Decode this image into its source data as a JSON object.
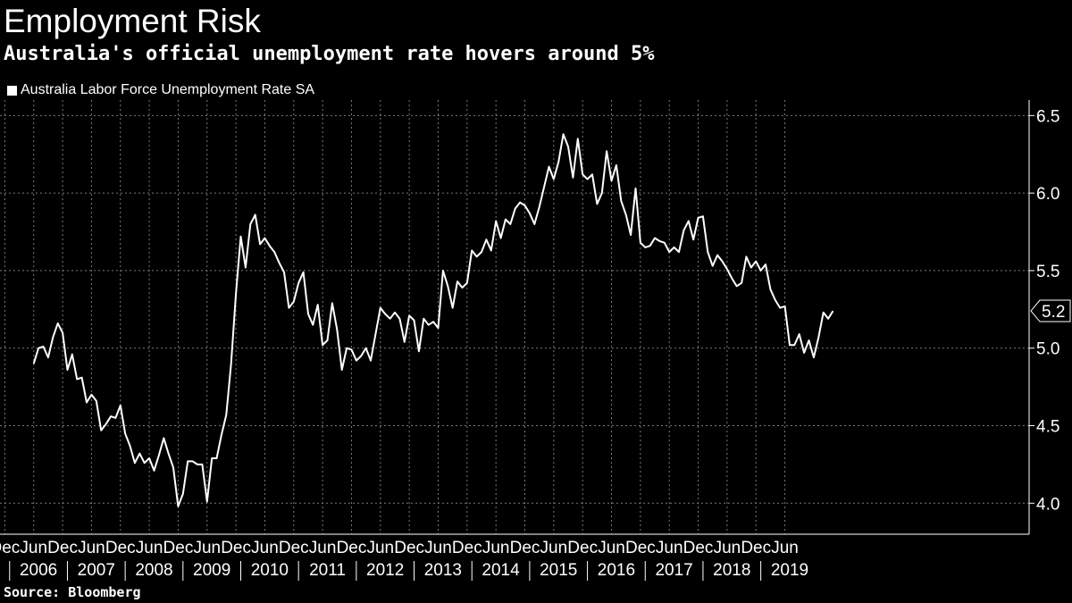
{
  "title": "Employment Risk",
  "subtitle": "Australia's official unemployment rate hovers around 5%",
  "source": "Source: Bloomberg",
  "colors": {
    "background": "#000000",
    "line": "#ffffff",
    "grid": "#7a7a7a",
    "text": "#ffffff"
  },
  "chart_data": {
    "type": "line",
    "title": "Employment Risk",
    "subtitle": "Australia's official unemployment rate hovers around 5%",
    "xlabel": "",
    "ylabel": "",
    "ylim": [
      3.8,
      6.6
    ],
    "yticks": [
      4.0,
      4.5,
      5.0,
      5.5,
      6.0,
      6.5
    ],
    "ytick_labels": [
      "4.0",
      "4.5",
      "5.0",
      "5.5",
      "6.0",
      "6.5"
    ],
    "x_range": [
      "2006-06",
      "2019-06"
    ],
    "month_ticks": [
      {
        "label": "Dec",
        "date": "2005-12"
      },
      {
        "label": "Jun",
        "date": "2006-06"
      },
      {
        "label": "Dec",
        "date": "2006-12"
      },
      {
        "label": "Jun",
        "date": "2007-06"
      },
      {
        "label": "Dec",
        "date": "2007-12"
      },
      {
        "label": "Jun",
        "date": "2008-06"
      },
      {
        "label": "Dec",
        "date": "2008-12"
      },
      {
        "label": "Jun",
        "date": "2009-06"
      },
      {
        "label": "Dec",
        "date": "2009-12"
      },
      {
        "label": "Jun",
        "date": "2010-06"
      },
      {
        "label": "Dec",
        "date": "2010-12"
      },
      {
        "label": "Jun",
        "date": "2011-06"
      },
      {
        "label": "Dec",
        "date": "2011-12"
      },
      {
        "label": "Jun",
        "date": "2012-06"
      },
      {
        "label": "Dec",
        "date": "2012-12"
      },
      {
        "label": "Jun",
        "date": "2013-06"
      },
      {
        "label": "Dec",
        "date": "2013-12"
      },
      {
        "label": "Jun",
        "date": "2014-06"
      },
      {
        "label": "Dec",
        "date": "2014-12"
      },
      {
        "label": "Jun",
        "date": "2015-06"
      },
      {
        "label": "Dec",
        "date": "2015-12"
      },
      {
        "label": "Jun",
        "date": "2016-06"
      },
      {
        "label": "Dec",
        "date": "2016-12"
      },
      {
        "label": "Jun",
        "date": "2017-06"
      },
      {
        "label": "Dec",
        "date": "2017-12"
      },
      {
        "label": "Jun",
        "date": "2018-06"
      },
      {
        "label": "Dec",
        "date": "2018-12"
      },
      {
        "label": "Jun",
        "date": "2019-06"
      }
    ],
    "year_labels": [
      "2006",
      "2007",
      "2008",
      "2009",
      "2010",
      "2011",
      "2012",
      "2013",
      "2014",
      "2015",
      "2016",
      "2017",
      "2018",
      "2019"
    ],
    "grid": true,
    "legend": "top-left",
    "last_value_label": "5.2",
    "series": [
      {
        "name": "Australia Labor Force Unemployment Rate SA",
        "start": "2006-06",
        "values": [
          4.9,
          5.0,
          5.01,
          4.94,
          5.07,
          5.16,
          5.1,
          4.86,
          4.96,
          4.8,
          4.81,
          4.65,
          4.7,
          4.66,
          4.47,
          4.51,
          4.56,
          4.55,
          4.63,
          4.45,
          4.37,
          4.26,
          4.32,
          4.26,
          4.29,
          4.21,
          4.31,
          4.42,
          4.32,
          4.23,
          3.98,
          4.06,
          4.27,
          4.27,
          4.25,
          4.25,
          4.01,
          4.29,
          4.29,
          4.44,
          4.57,
          4.9,
          5.35,
          5.72,
          5.52,
          5.8,
          5.86,
          5.67,
          5.71,
          5.66,
          5.62,
          5.55,
          5.49,
          5.26,
          5.3,
          5.42,
          5.49,
          5.22,
          5.15,
          5.28,
          5.02,
          5.05,
          5.29,
          5.12,
          4.86,
          5.0,
          4.99,
          4.92,
          4.95,
          5.0,
          4.92,
          5.09,
          5.26,
          5.22,
          5.19,
          5.23,
          5.19,
          5.04,
          5.21,
          5.18,
          4.98,
          5.19,
          5.15,
          5.17,
          5.13,
          5.5,
          5.4,
          5.26,
          5.43,
          5.39,
          5.42,
          5.63,
          5.59,
          5.62,
          5.7,
          5.63,
          5.82,
          5.71,
          5.83,
          5.8,
          5.9,
          5.94,
          5.92,
          5.87,
          5.8,
          5.91,
          6.04,
          6.17,
          6.09,
          6.2,
          6.38,
          6.3,
          6.1,
          6.35,
          6.12,
          6.09,
          6.12,
          5.93,
          6.0,
          6.27,
          6.08,
          6.18,
          5.95,
          5.86,
          5.73,
          6.03,
          5.68,
          5.65,
          5.66,
          5.71,
          5.69,
          5.68,
          5.62,
          5.65,
          5.62,
          5.76,
          5.82,
          5.7,
          5.84,
          5.85,
          5.62,
          5.53,
          5.6,
          5.56,
          5.51,
          5.45,
          5.4,
          5.42,
          5.59,
          5.52,
          5.56,
          5.5,
          5.54,
          5.38,
          5.31,
          5.26,
          5.27,
          5.02,
          5.02,
          5.09,
          4.97,
          5.05,
          4.94,
          5.07,
          5.23,
          5.19,
          5.24
        ]
      }
    ]
  }
}
